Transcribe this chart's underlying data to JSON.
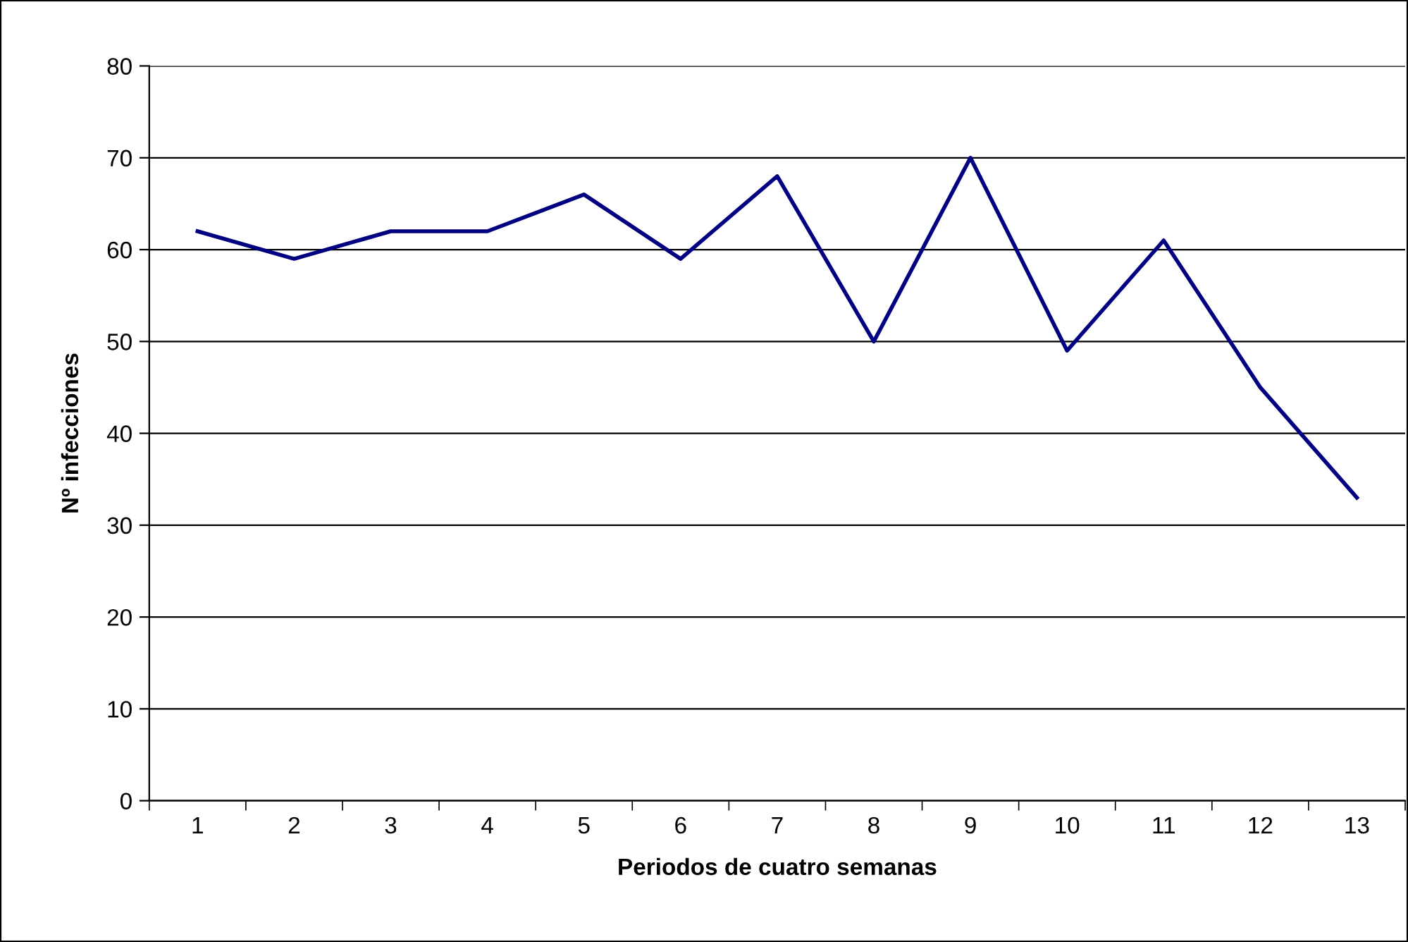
{
  "chart_data": {
    "type": "line",
    "xlabel": "Periodos de cuatro semanas",
    "ylabel": "Nº infecciones",
    "categories": [
      "1",
      "2",
      "3",
      "4",
      "5",
      "6",
      "7",
      "8",
      "9",
      "10",
      "11",
      "12",
      "13"
    ],
    "series": [
      {
        "color": "#000080",
        "values": [
          62,
          59,
          62,
          62,
          66,
          59,
          68,
          50,
          70,
          49,
          61,
          45,
          33
        ]
      }
    ],
    "ylim": [
      0,
      80
    ],
    "yticks": [
      0,
      10,
      20,
      30,
      40,
      50,
      60,
      70,
      80
    ],
    "grid": "y",
    "legend": false,
    "marker": "none",
    "line_style": "solid"
  }
}
